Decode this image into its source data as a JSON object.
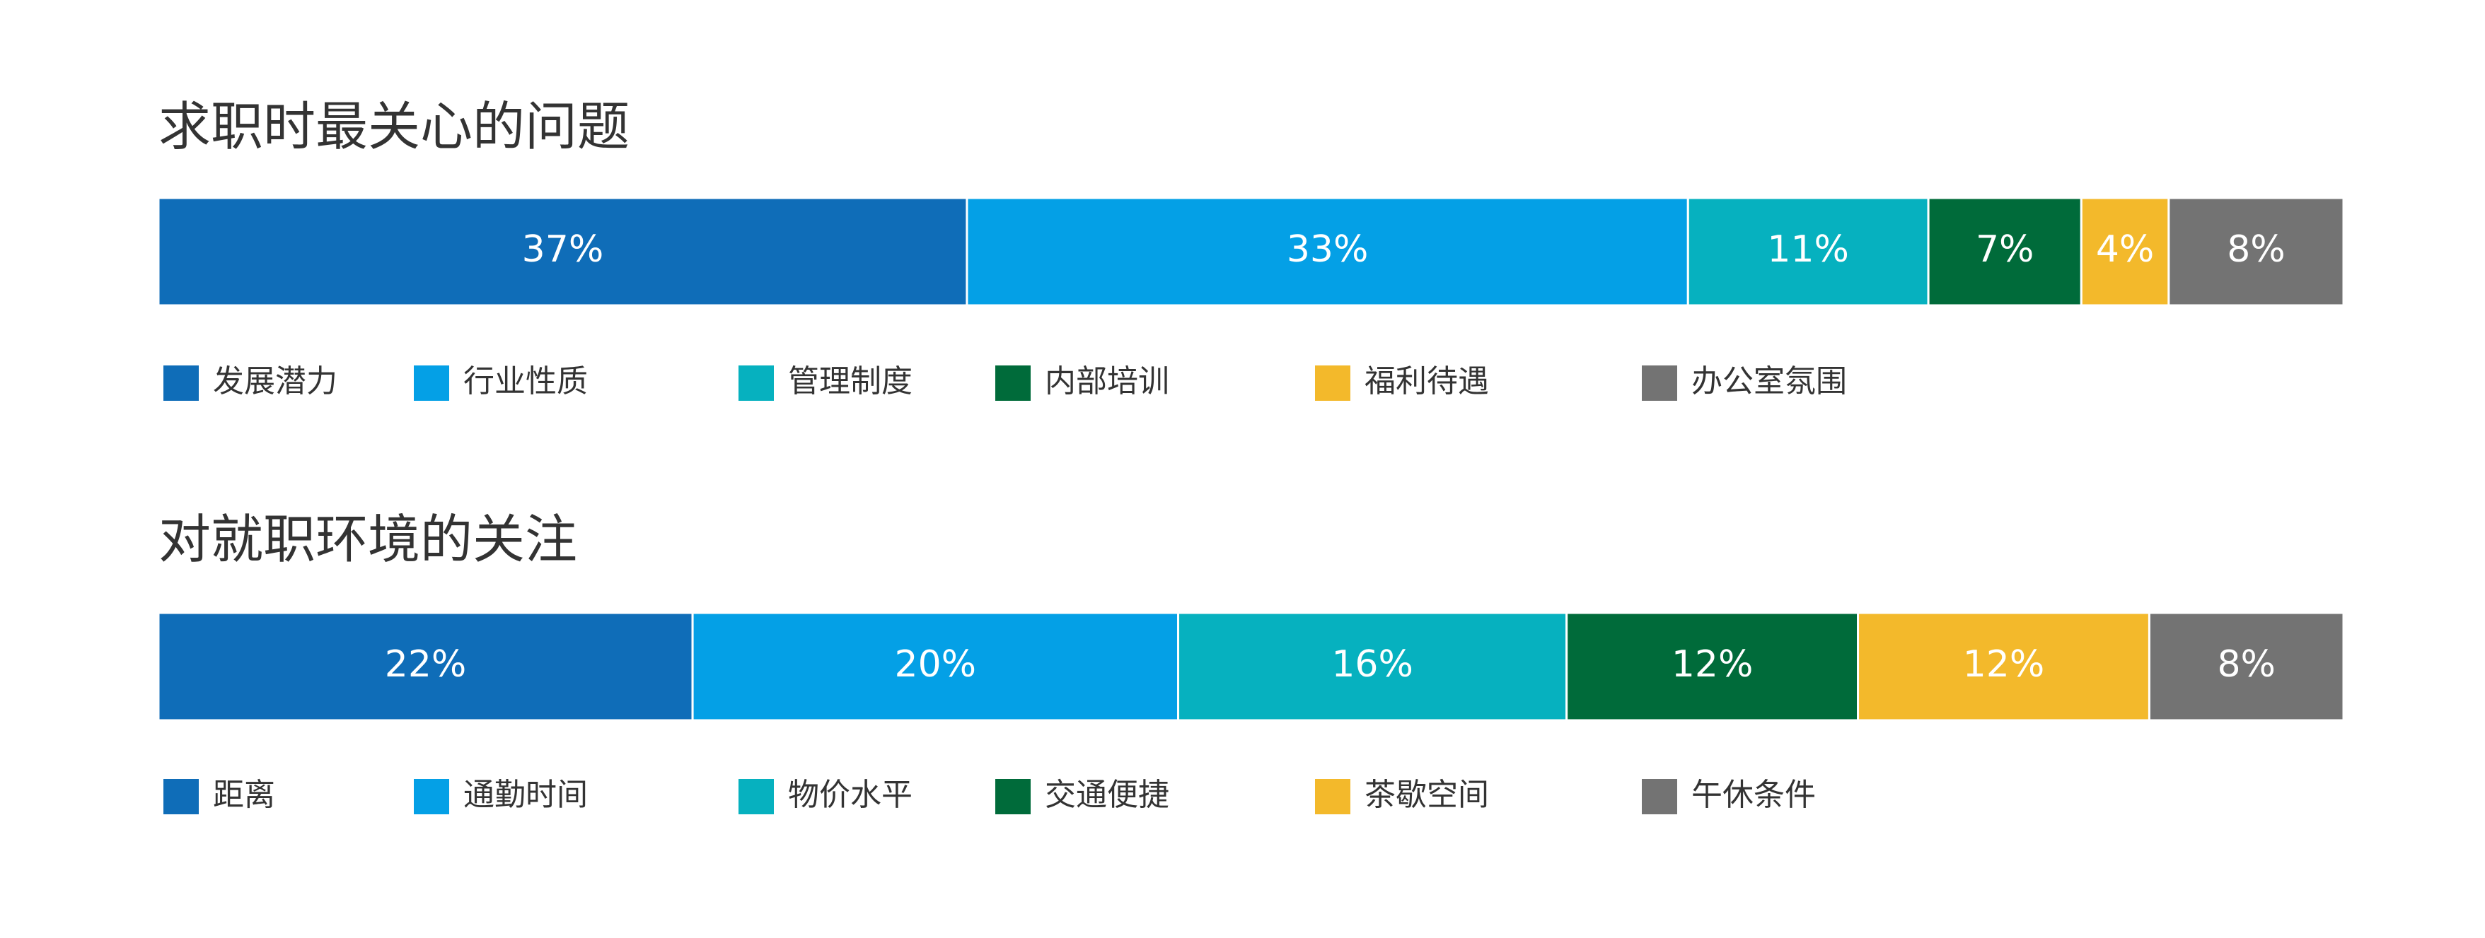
{
  "chart_data": [
    {
      "type": "bar",
      "stacked": true,
      "orientation": "horizontal",
      "title": "求职时最关心的问题",
      "xlim": [
        0,
        100
      ],
      "series": [
        {
          "name": "发展潜力",
          "color": "#0f6db8",
          "values": [
            37
          ],
          "value_labels": [
            "37%"
          ]
        },
        {
          "name": "行业性质",
          "color": "#04a0e6",
          "values": [
            33
          ],
          "value_labels": [
            "33%"
          ]
        },
        {
          "name": "管理制度",
          "color": "#06b1bf",
          "values": [
            11
          ],
          "value_labels": [
            "11%"
          ]
        },
        {
          "name": "内部培训",
          "color": "#006b3a",
          "values": [
            7
          ],
          "value_labels": [
            "7%"
          ]
        },
        {
          "name": "福利待遇",
          "color": "#f3b92b",
          "values": [
            4
          ],
          "value_labels": [
            "4%"
          ]
        },
        {
          "name": "办公室氛围",
          "color": "#737373",
          "values": [
            8
          ],
          "value_labels": [
            "8%"
          ]
        }
      ]
    },
    {
      "type": "bar",
      "stacked": true,
      "orientation": "horizontal",
      "title": "对就职环境的关注",
      "xlim": [
        0,
        90
      ],
      "series": [
        {
          "name": "距离",
          "color": "#0f6db8",
          "values": [
            22
          ],
          "value_labels": [
            "22%"
          ]
        },
        {
          "name": "通勤时间",
          "color": "#04a0e6",
          "values": [
            20
          ],
          "value_labels": [
            "20%"
          ]
        },
        {
          "name": "物价水平",
          "color": "#06b1bf",
          "values": [
            16
          ],
          "value_labels": [
            "16%"
          ]
        },
        {
          "name": "交通便捷",
          "color": "#006b3a",
          "values": [
            12
          ],
          "value_labels": [
            "12%"
          ]
        },
        {
          "name": "茶歇空间",
          "color": "#f3b92b",
          "values": [
            12
          ],
          "value_labels": [
            "12%"
          ]
        },
        {
          "name": "午休条件",
          "color": "#737373",
          "values": [
            8
          ],
          "value_labels": [
            "8%"
          ]
        }
      ]
    }
  ]
}
